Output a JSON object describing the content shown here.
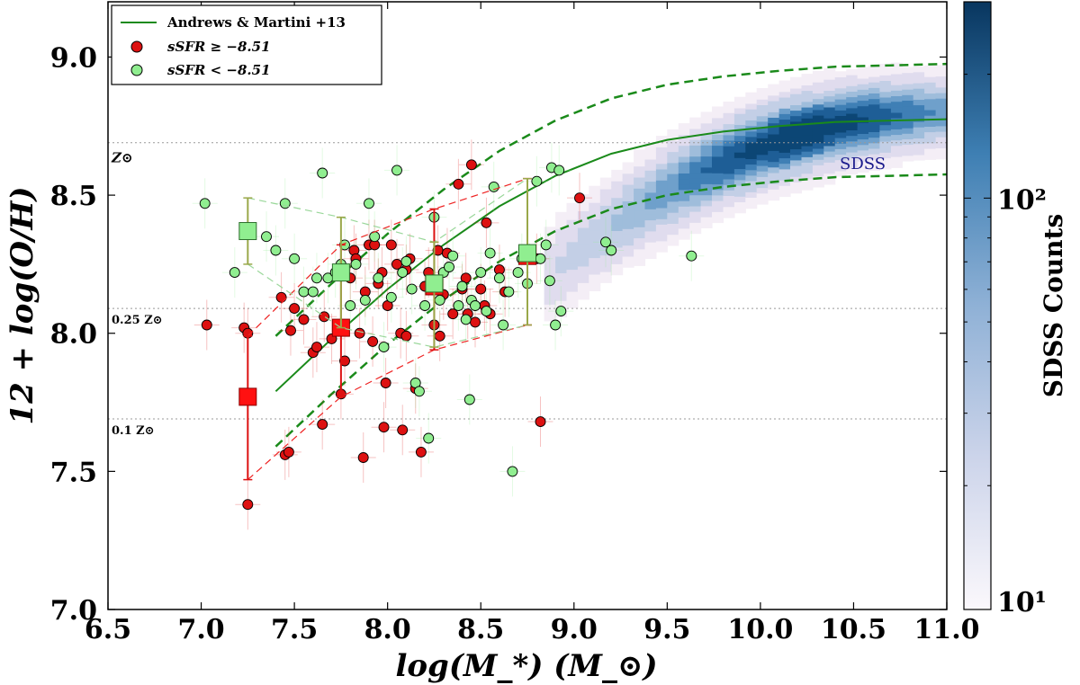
{
  "chart_data": {
    "type": "scatter",
    "title": "",
    "xlabel": "log(M_*) (M_⊙)",
    "ylabel": "12 + log(O/H)",
    "xlim": [
      6.5,
      11.0
    ],
    "ylim": [
      7.0,
      9.2
    ],
    "xticks": [
      6.5,
      7.0,
      7.5,
      8.0,
      8.5,
      9.0,
      9.5,
      10.0,
      10.5,
      11.0
    ],
    "xtick_labels": [
      "6.5",
      "7.0",
      "7.5",
      "8.0",
      "8.5",
      "9.0",
      "9.5",
      "10.0",
      "10.5",
      "11.0"
    ],
    "yticks": [
      7.0,
      7.5,
      8.0,
      8.5,
      9.0
    ],
    "ytick_labels": [
      "7.0",
      "7.5",
      "8.0",
      "8.5",
      "9.0"
    ],
    "legend": {
      "position": "top-left",
      "entries": [
        {
          "label": "Andrews & Martini +13",
          "marker": "line",
          "color": "#1a8a1a"
        },
        {
          "label": "sSFR ≥ −8.51",
          "marker": "circle",
          "color": "#dd1111"
        },
        {
          "label": "sSFR < −8.51",
          "marker": "circle",
          "color": "#90ee90"
        }
      ]
    },
    "reference_lines": [
      {
        "label": "Z⊙",
        "y": 8.69
      },
      {
        "label": "0.25 Z⊙",
        "y": 8.09
      },
      {
        "label": "0.1 Z⊙",
        "y": 7.69
      }
    ],
    "annotation": "SDSS",
    "colorbar": {
      "label": "SDSS Counts",
      "scale": "log",
      "tick_labels": [
        "10¹",
        "10²"
      ],
      "tick_values": [
        10,
        100
      ],
      "range": [
        10,
        300
      ]
    },
    "curve": {
      "name": "Andrews & Martini +13",
      "x": [
        7.4,
        7.7,
        8.0,
        8.3,
        8.6,
        8.9,
        9.2,
        9.5,
        9.8,
        10.1,
        10.4,
        10.7,
        11.0
      ],
      "y": [
        7.79,
        7.98,
        8.16,
        8.32,
        8.46,
        8.57,
        8.65,
        8.7,
        8.73,
        8.75,
        8.765,
        8.77,
        8.775
      ],
      "upper": [
        7.99,
        8.18,
        8.36,
        8.52,
        8.66,
        8.77,
        8.85,
        8.9,
        8.93,
        8.95,
        8.965,
        8.97,
        8.975
      ],
      "lower": [
        7.59,
        7.78,
        7.96,
        8.12,
        8.26,
        8.37,
        8.45,
        8.5,
        8.53,
        8.55,
        8.565,
        8.57,
        8.575
      ]
    },
    "series": [
      {
        "name": "sSFR ≥ −8.51",
        "color": "#dd1111",
        "points": [
          [
            7.03,
            8.03
          ],
          [
            7.23,
            8.02
          ],
          [
            7.25,
            8.0
          ],
          [
            7.25,
            7.38
          ],
          [
            7.43,
            8.13
          ],
          [
            7.45,
            7.56
          ],
          [
            7.47,
            7.57
          ],
          [
            7.48,
            8.01
          ],
          [
            7.5,
            8.09
          ],
          [
            7.55,
            8.05
          ],
          [
            7.6,
            7.93
          ],
          [
            7.62,
            7.95
          ],
          [
            7.65,
            7.67
          ],
          [
            7.66,
            8.06
          ],
          [
            7.7,
            7.98
          ],
          [
            7.75,
            7.78
          ],
          [
            7.77,
            7.9
          ],
          [
            7.8,
            8.2
          ],
          [
            7.82,
            8.3
          ],
          [
            7.83,
            8.27
          ],
          [
            7.85,
            8.0
          ],
          [
            7.87,
            7.55
          ],
          [
            7.88,
            8.15
          ],
          [
            7.9,
            8.32
          ],
          [
            7.92,
            7.97
          ],
          [
            7.93,
            8.32
          ],
          [
            7.95,
            8.18
          ],
          [
            7.97,
            8.22
          ],
          [
            7.98,
            7.66
          ],
          [
            7.99,
            7.82
          ],
          [
            8.0,
            8.1
          ],
          [
            8.02,
            8.32
          ],
          [
            8.05,
            8.25
          ],
          [
            8.07,
            8.0
          ],
          [
            8.08,
            7.65
          ],
          [
            8.1,
            8.23
          ],
          [
            8.1,
            7.99
          ],
          [
            8.12,
            8.27
          ],
          [
            8.15,
            7.8
          ],
          [
            8.18,
            7.57
          ],
          [
            8.2,
            8.17
          ],
          [
            8.22,
            8.22
          ],
          [
            8.25,
            8.03
          ],
          [
            8.27,
            8.3
          ],
          [
            8.28,
            7.99
          ],
          [
            8.3,
            8.14
          ],
          [
            8.32,
            8.29
          ],
          [
            8.35,
            8.07
          ],
          [
            8.38,
            8.54
          ],
          [
            8.4,
            8.16
          ],
          [
            8.42,
            8.2
          ],
          [
            8.43,
            8.07
          ],
          [
            8.45,
            8.61
          ],
          [
            8.47,
            8.04
          ],
          [
            8.5,
            8.16
          ],
          [
            8.52,
            8.1
          ],
          [
            8.53,
            8.4
          ],
          [
            8.55,
            8.07
          ],
          [
            8.6,
            8.23
          ],
          [
            8.63,
            8.15
          ],
          [
            8.8,
            8.27
          ],
          [
            8.82,
            7.68
          ],
          [
            9.03,
            8.49
          ]
        ]
      },
      {
        "name": "sSFR < −8.51",
        "color": "#90ee90",
        "points": [
          [
            7.02,
            8.47
          ],
          [
            7.18,
            8.22
          ],
          [
            7.35,
            8.35
          ],
          [
            7.4,
            8.3
          ],
          [
            7.45,
            8.47
          ],
          [
            7.5,
            8.27
          ],
          [
            7.55,
            8.15
          ],
          [
            7.6,
            8.15
          ],
          [
            7.62,
            8.2
          ],
          [
            7.65,
            8.58
          ],
          [
            7.68,
            8.2
          ],
          [
            7.72,
            8.22
          ],
          [
            7.75,
            8.25
          ],
          [
            7.77,
            8.32
          ],
          [
            7.8,
            8.1
          ],
          [
            7.83,
            8.25
          ],
          [
            7.88,
            8.12
          ],
          [
            7.9,
            8.47
          ],
          [
            7.93,
            8.35
          ],
          [
            7.95,
            8.2
          ],
          [
            7.98,
            7.95
          ],
          [
            8.02,
            8.13
          ],
          [
            8.05,
            8.59
          ],
          [
            8.08,
            8.22
          ],
          [
            8.1,
            8.26
          ],
          [
            8.13,
            8.16
          ],
          [
            8.15,
            7.82
          ],
          [
            8.17,
            7.79
          ],
          [
            8.2,
            8.1
          ],
          [
            8.22,
            7.62
          ],
          [
            8.25,
            8.42
          ],
          [
            8.28,
            8.12
          ],
          [
            8.3,
            8.22
          ],
          [
            8.33,
            8.24
          ],
          [
            8.35,
            8.28
          ],
          [
            8.38,
            8.1
          ],
          [
            8.4,
            8.17
          ],
          [
            8.42,
            8.05
          ],
          [
            8.44,
            7.76
          ],
          [
            8.45,
            8.12
          ],
          [
            8.47,
            8.1
          ],
          [
            8.5,
            8.22
          ],
          [
            8.53,
            8.08
          ],
          [
            8.55,
            8.29
          ],
          [
            8.57,
            8.53
          ],
          [
            8.6,
            8.2
          ],
          [
            8.62,
            8.03
          ],
          [
            8.65,
            8.15
          ],
          [
            8.67,
            7.5
          ],
          [
            8.7,
            8.22
          ],
          [
            8.72,
            8.27
          ],
          [
            8.75,
            8.18
          ],
          [
            8.8,
            8.55
          ],
          [
            8.82,
            8.27
          ],
          [
            8.85,
            8.32
          ],
          [
            8.87,
            8.19
          ],
          [
            8.88,
            8.6
          ],
          [
            8.9,
            8.03
          ],
          [
            8.92,
            8.59
          ],
          [
            8.93,
            8.08
          ],
          [
            9.17,
            8.33
          ],
          [
            9.2,
            8.3
          ],
          [
            9.63,
            8.28
          ]
        ]
      },
      {
        "name": "sSFR ≥ −8.51 binned median",
        "color": "#ff1111",
        "points": [
          [
            7.25,
            7.77
          ],
          [
            7.75,
            8.02
          ],
          [
            8.25,
            8.17
          ],
          [
            8.75,
            8.28
          ]
        ],
        "err_low": [
          0.3,
          0.25,
          0.23,
          0.25
        ],
        "err_high": [
          0.22,
          0.3,
          0.28,
          0.28
        ]
      },
      {
        "name": "sSFR < −8.51 binned median",
        "color": "#90ee90",
        "points": [
          [
            7.25,
            8.37
          ],
          [
            7.75,
            8.22
          ],
          [
            8.25,
            8.18
          ],
          [
            8.75,
            8.29
          ]
        ],
        "err_low": [
          0.12,
          0.2,
          0.23,
          0.26
        ],
        "err_high": [
          0.12,
          0.2,
          0.15,
          0.27
        ]
      }
    ]
  }
}
